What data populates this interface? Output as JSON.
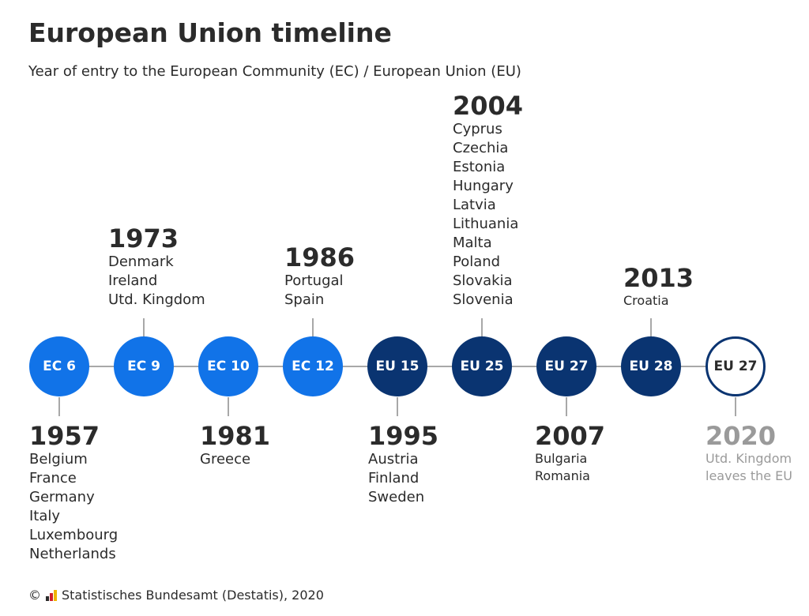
{
  "title": "European Union timeline",
  "subtitle": "Year of entry to the European Community (EC) / European Union (EU)",
  "nodes": [
    "EC 6",
    "EC 9",
    "EC 10",
    "EC 12",
    "EU 15",
    "EU 25",
    "EU 27",
    "EU 28",
    "EU 27"
  ],
  "events": {
    "y1957": {
      "year": "1957",
      "countries": [
        "Belgium",
        "France",
        "Germany",
        "Italy",
        "Luxembourg",
        "Netherlands"
      ]
    },
    "y1973": {
      "year": "1973",
      "countries": [
        "Denmark",
        "Ireland",
        "Utd. Kingdom"
      ]
    },
    "y1981": {
      "year": "1981",
      "countries": [
        "Greece"
      ]
    },
    "y1986": {
      "year": "1986",
      "countries": [
        "Portugal",
        "Spain"
      ]
    },
    "y1995": {
      "year": "1995",
      "countries": [
        "Austria",
        "Finland",
        "Sweden"
      ]
    },
    "y2004": {
      "year": "2004",
      "countries": [
        "Cyprus",
        "Czechia",
        "Estonia",
        "Hungary",
        "Latvia",
        "Lithuania",
        "Malta",
        "Poland",
        "Slovakia",
        "Slovenia"
      ]
    },
    "y2007": {
      "year": "2007",
      "countries": [
        "Bulgaria",
        "Romania"
      ]
    },
    "y2013": {
      "year": "2013",
      "countries": [
        "Croatia"
      ]
    },
    "y2020": {
      "year": "2020",
      "countries": [
        "Utd. Kingdom",
        "leaves the EU"
      ]
    }
  },
  "source": {
    "copyright": "©",
    "text": "Statistisches Bundesamt (Destatis), 2020"
  },
  "colors": {
    "ec": "#1173e8",
    "eu": "#0a3471",
    "line": "#a8a8a8",
    "muted": "#9a9a9a"
  }
}
